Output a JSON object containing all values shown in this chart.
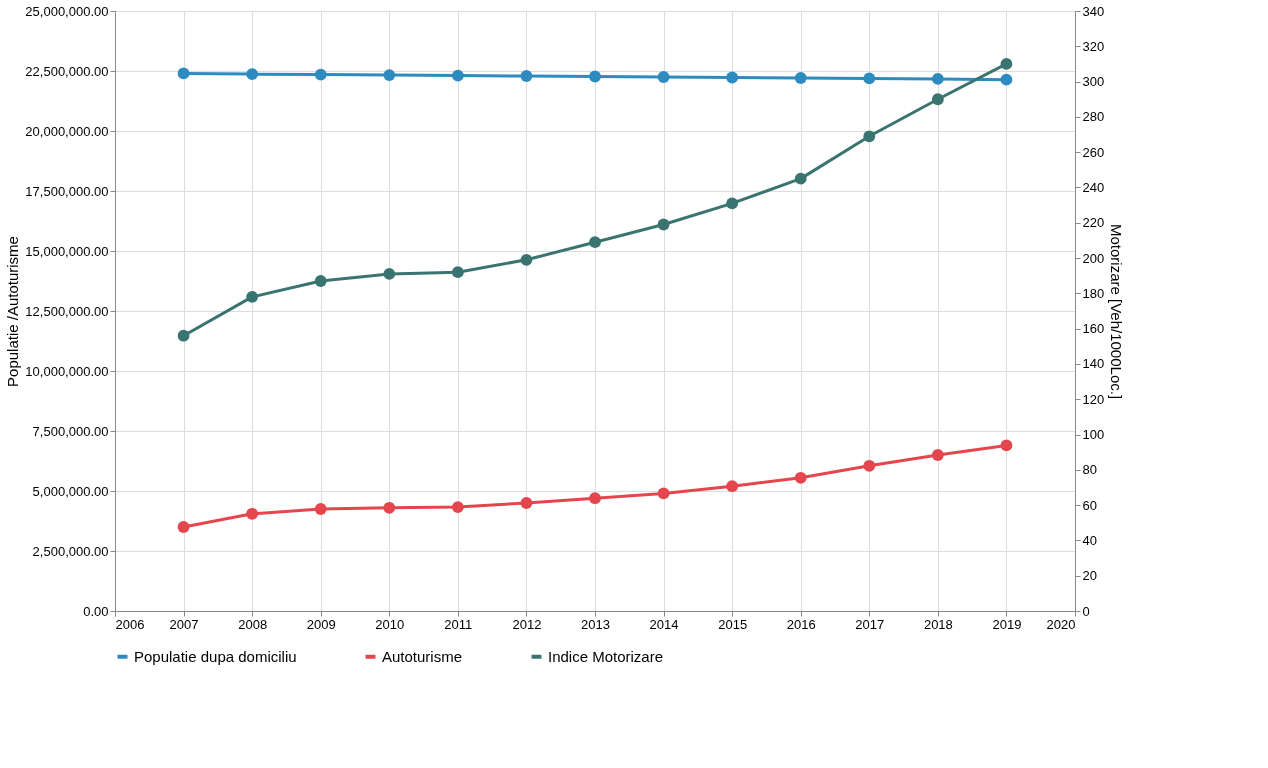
{
  "chart_data": {
    "type": "line",
    "ylabel": "Populatie /Autoturisme",
    "y2label": "Motorizare [Veh/1000Loc.]",
    "x": [
      2007,
      2008,
      2009,
      2010,
      2011,
      2012,
      2013,
      2014,
      2015,
      2016,
      2017,
      2018,
      2019
    ],
    "series": [
      {
        "name": "Populatie dupa domiciliu",
        "color": "#2e8bc0",
        "values": [
          22400000,
          22370000,
          22350000,
          22330000,
          22310000,
          22290000,
          22270000,
          22250000,
          22230000,
          22210000,
          22190000,
          22170000,
          22140000
        ]
      },
      {
        "name": "Autoturisme",
        "color": "#e5464e",
        "values": [
          3500000,
          4050000,
          4250000,
          4300000,
          4330000,
          4500000,
          4700000,
          4900000,
          5200000,
          5550000,
          6050000,
          6500000,
          6900000
        ]
      },
      {
        "name": "Indice Motorizare",
        "color": "#3a7470",
        "axis": "y2",
        "values": [
          156,
          178,
          187,
          191,
          192,
          199,
          209,
          219,
          231,
          245,
          269,
          290,
          310
        ]
      }
    ],
    "xlim": [
      2006,
      2020
    ],
    "xticks": [
      2006,
      2007,
      2008,
      2009,
      2010,
      2011,
      2012,
      2013,
      2014,
      2015,
      2016,
      2017,
      2018,
      2019,
      2020
    ],
    "ylim": [
      0,
      25000000
    ],
    "yticks": [
      {
        "value": 0,
        "label": "0.00"
      },
      {
        "value": 2500000,
        "label": "2,500,000.00"
      },
      {
        "value": 5000000,
        "label": "5,000,000.00"
      },
      {
        "value": 7500000,
        "label": "7,500,000.00"
      },
      {
        "value": 10000000,
        "label": "10,000,000.00"
      },
      {
        "value": 12500000,
        "label": "12,500,000.00"
      },
      {
        "value": 15000000,
        "label": "15,000,000.00"
      },
      {
        "value": 17500000,
        "label": "17,500,000.00"
      },
      {
        "value": 20000000,
        "label": "20,000,000.00"
      },
      {
        "value": 22500000,
        "label": "22,500,000.00"
      },
      {
        "value": 25000000,
        "label": "25,000,000.00"
      }
    ],
    "y2lim": [
      0,
      340
    ],
    "y2ticks": [
      0,
      20,
      40,
      60,
      80,
      100,
      120,
      140,
      160,
      180,
      200,
      220,
      240,
      260,
      280,
      300,
      320,
      340
    ],
    "grid": true,
    "legend": "bottom",
    "marker": "circle",
    "line_style": "solid"
  }
}
